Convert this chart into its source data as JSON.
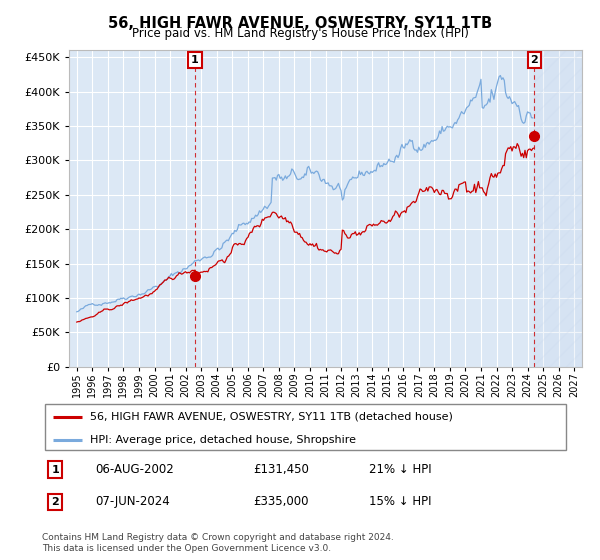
{
  "title": "56, HIGH FAWR AVENUE, OSWESTRY, SY11 1TB",
  "subtitle": "Price paid vs. HM Land Registry's House Price Index (HPI)",
  "legend_line1": "56, HIGH FAWR AVENUE, OSWESTRY, SY11 1TB (detached house)",
  "legend_line2": "HPI: Average price, detached house, Shropshire",
  "footer1": "Contains HM Land Registry data © Crown copyright and database right 2024.",
  "footer2": "This data is licensed under the Open Government Licence v3.0.",
  "annotation1_label": "1",
  "annotation1_date": "06-AUG-2002",
  "annotation1_price": "£131,450",
  "annotation1_hpi": "21% ↓ HPI",
  "annotation2_label": "2",
  "annotation2_date": "07-JUN-2024",
  "annotation2_price": "£335,000",
  "annotation2_hpi": "15% ↓ HPI",
  "sale1_x": 2002.6,
  "sale1_y": 131450,
  "sale2_x": 2024.43,
  "sale2_y": 335000,
  "hpi_color": "#7aaadd",
  "price_color": "#cc0000",
  "plot_bg": "#dce8f5",
  "ylim": [
    0,
    460000
  ],
  "xlim_start": 1994.5,
  "xlim_end": 2027.5,
  "grid_color": "#ffffff",
  "yticks": [
    0,
    50000,
    100000,
    150000,
    200000,
    250000,
    300000,
    350000,
    400000,
    450000
  ]
}
